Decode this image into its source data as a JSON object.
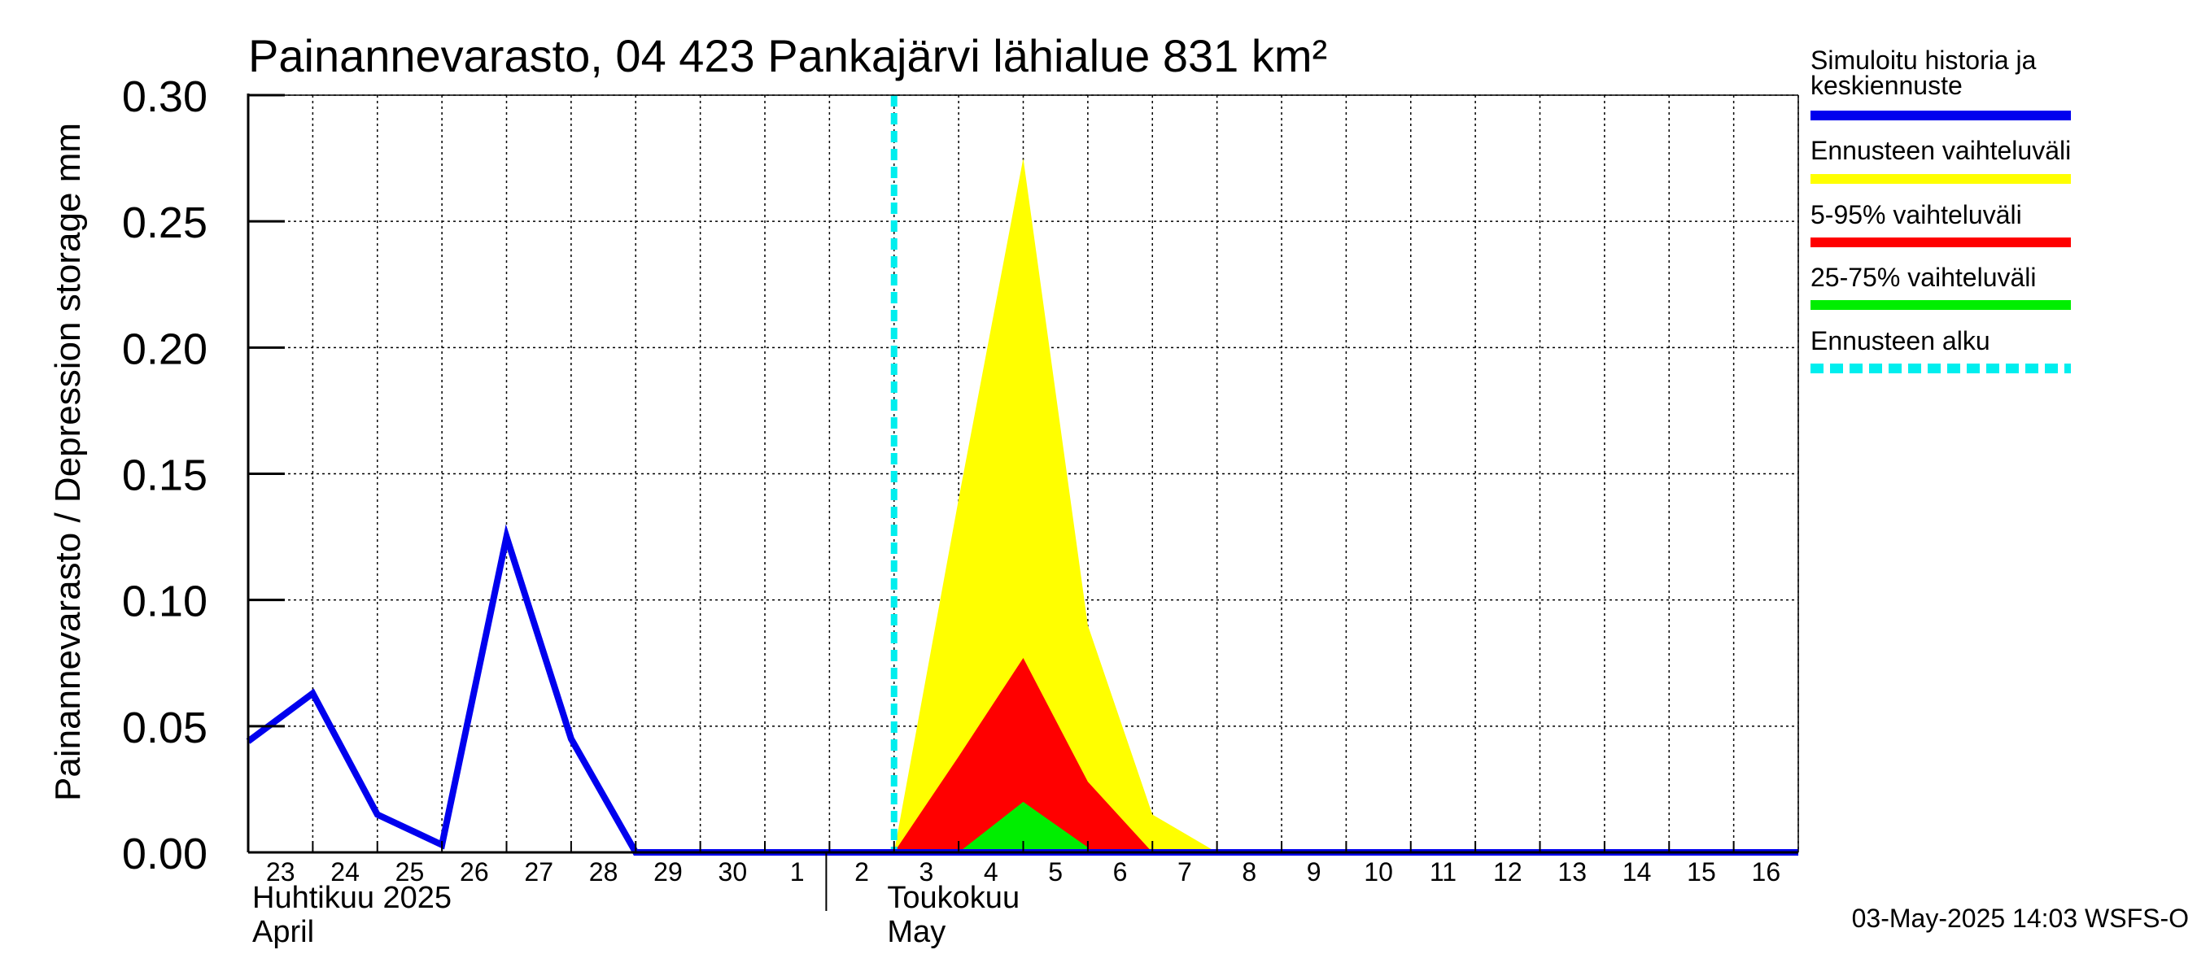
{
  "chart_data": {
    "type": "area",
    "title": "Painannevarasto, 04 423 Pankajärvi lähialue 831 km²",
    "ylabel": "Painannevarasto / Depression storage    mm",
    "ylim": [
      0.0,
      0.3
    ],
    "yticks": [
      "0.00",
      "0.05",
      "0.10",
      "0.15",
      "0.20",
      "0.25",
      "0.30"
    ],
    "x_days": [
      "23",
      "24",
      "25",
      "26",
      "27",
      "28",
      "29",
      "30",
      "1",
      "2",
      "3",
      "4",
      "5",
      "6",
      "7",
      "8",
      "9",
      "10",
      "11",
      "12",
      "13",
      "14",
      "15",
      "16"
    ],
    "months": [
      {
        "line1": "Huhtikuu  2025",
        "line2": "April",
        "start_day_index": 0
      },
      {
        "line1": "Toukokuu",
        "line2": "May",
        "start_day_index": 9
      }
    ],
    "forecast_start_day": 10,
    "series": [
      {
        "name": "Simuloitu historia ja keskiennuste",
        "color": "#0000ee",
        "type": "line",
        "x": [
          0,
          1,
          2,
          3,
          4,
          5,
          6,
          7,
          8,
          9,
          10,
          11,
          12,
          13,
          14,
          15,
          16,
          17,
          18,
          19,
          20,
          21,
          22,
          23,
          24
        ],
        "y": [
          0.044,
          0.063,
          0.015,
          0.003,
          0.125,
          0.045,
          0.0,
          0.0,
          0.0,
          0.0,
          0.0,
          0.0,
          0.0,
          0.0,
          0.0,
          0.0,
          0.0,
          0.0,
          0.0,
          0.0,
          0.0,
          0.0,
          0.0,
          0.0,
          0.0
        ]
      },
      {
        "name": "Ennusteen vaihteluväli",
        "color": "#ffff00",
        "type": "band",
        "x": [
          10,
          11,
          12,
          13,
          14,
          15
        ],
        "low": [
          0,
          0,
          0,
          0,
          0,
          0
        ],
        "high": [
          0.0,
          0.14,
          0.275,
          0.09,
          0.015,
          0.0
        ]
      },
      {
        "name": "5-95% vaihteluväli",
        "color": "#ff0000",
        "type": "band",
        "x": [
          10,
          11,
          12,
          13,
          14
        ],
        "low": [
          0,
          0,
          0,
          0,
          0
        ],
        "high": [
          0.0,
          0.038,
          0.077,
          0.028,
          0.0
        ]
      },
      {
        "name": "25-75% vaihteluväli",
        "color": "#00ee00",
        "type": "band",
        "x": [
          11,
          12,
          13
        ],
        "low": [
          0,
          0,
          0
        ],
        "high": [
          0.0,
          0.02,
          0.002
        ]
      },
      {
        "name": "Ennusteen alku",
        "color": "#00eeee",
        "type": "vline",
        "x": 10
      }
    ],
    "legend": [
      {
        "label": "Simuloitu historia ja keskiennuste",
        "lines": [
          "Simuloitu historia ja",
          "keskiennuste"
        ],
        "color": "#0000ee",
        "style": "solid"
      },
      {
        "label": "Ennusteen vaihteluväli",
        "lines": [
          "Ennusteen vaihteluväli"
        ],
        "color": "#ffff00",
        "style": "solid"
      },
      {
        "label": "5-95% vaihteluväli",
        "lines": [
          "5-95% vaihteluväli"
        ],
        "color": "#ff0000",
        "style": "solid"
      },
      {
        "label": "25-75% vaihteluväli",
        "lines": [
          "25-75% vaihteluväli"
        ],
        "color": "#00ee00",
        "style": "solid"
      },
      {
        "label": "Ennusteen alku",
        "lines": [
          "Ennusteen alku"
        ],
        "color": "#00eeee",
        "style": "dashed"
      }
    ],
    "legend_position": "right",
    "grid": true
  },
  "footer": "03-May-2025 14:03 WSFS-O"
}
